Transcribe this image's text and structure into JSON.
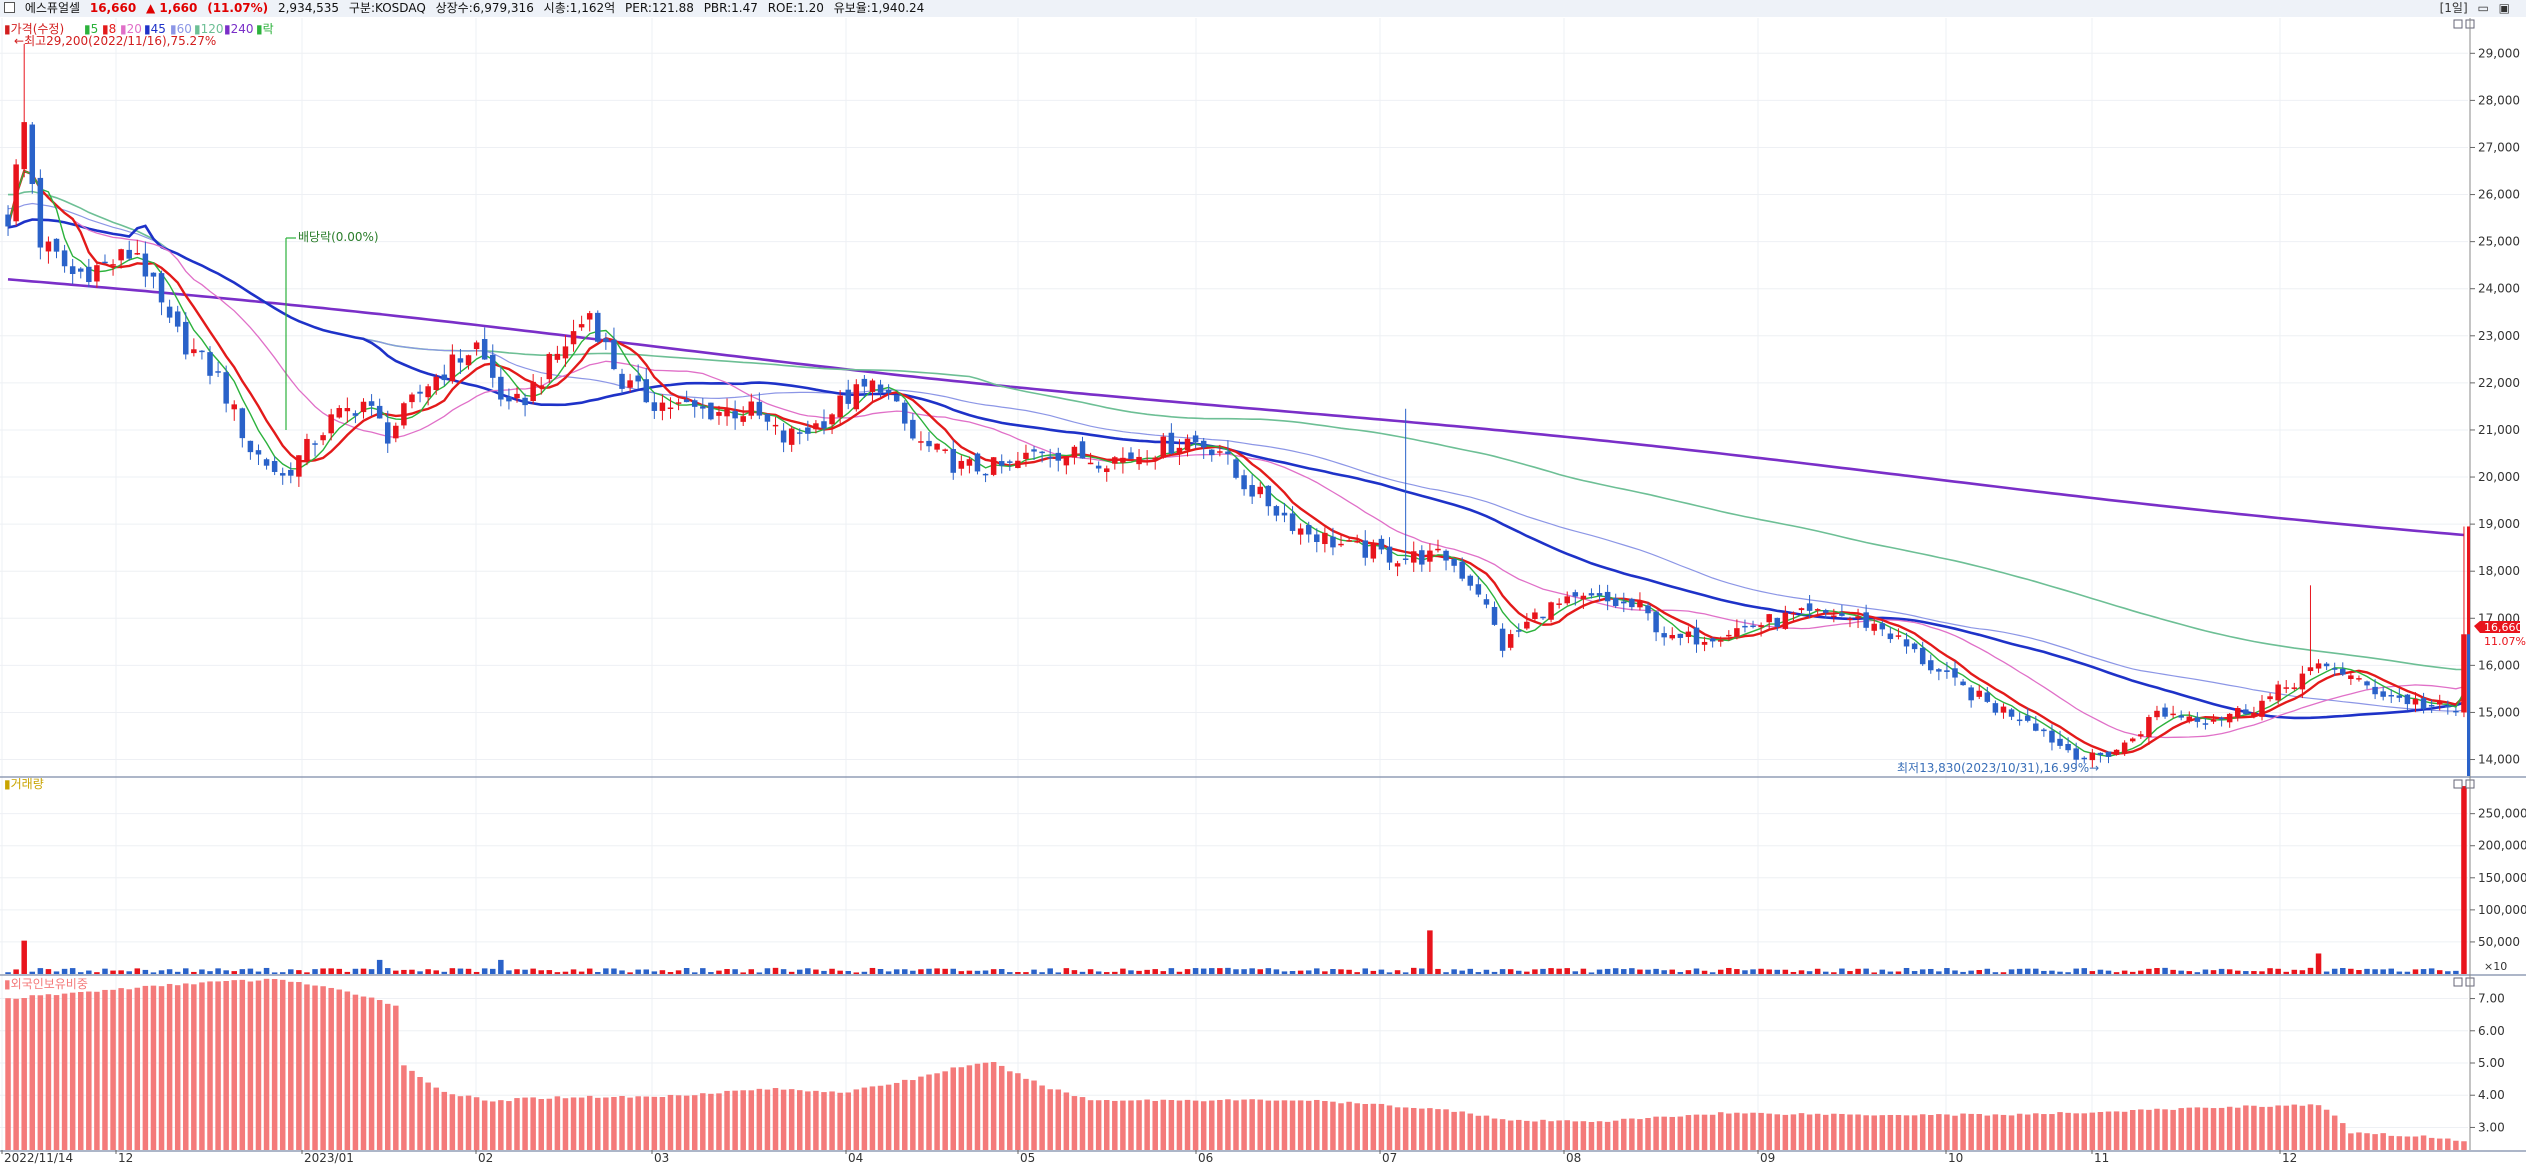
{
  "header": {
    "stock_name": "에스퓨얼셀",
    "price": "16,660",
    "change": "▲ 1,660",
    "change_pct": "(11.07%)",
    "volume": "2,934,535",
    "market": "구분:KOSDAQ",
    "listed": "상장수:6,979,316",
    "cap": "시총:1,162억",
    "per": "PER:121.88",
    "pbr": "PBR:1.47",
    "roe": "ROE:1.20",
    "reserve": "유보율:1,940.24",
    "period": "[1일]"
  },
  "price_legend": {
    "price": "가격(수정)",
    "ma": [
      "5",
      "8",
      "20",
      "45",
      "60",
      "120",
      "240"
    ],
    "tail": "락"
  },
  "annotations": {
    "high": "최고29,200(2022/11/16),75.27%",
    "low": "최저13,830(2023/10/31),16.99%",
    "dividend": "배당락(0.00%)"
  },
  "current_marker": {
    "value": "16,660",
    "pct": "11.07%"
  },
  "volume_panel": {
    "title": "거래량",
    "multiplier": "×10"
  },
  "foreign_panel": {
    "title": "외국인보유비중"
  },
  "colors": {
    "up": "#e8141c",
    "down": "#2a62c9",
    "ma5": "#2cb23c",
    "ma8": "#e31a1a",
    "ma20": "#e070c8",
    "ma45": "#1e32c8",
    "ma60": "#8c96e6",
    "ma120": "#6dbf95",
    "ma240": "#7a2fc8",
    "foreign": "#f47a7a"
  },
  "chart_data": [
    {
      "type": "candlestick",
      "title": "가격(수정)",
      "x_ticks": [
        "2022/11/14",
        "12",
        "2023/01",
        "02",
        "03",
        "04",
        "05",
        "06",
        "07",
        "08",
        "09",
        "10",
        "11",
        "12"
      ],
      "y_ticks": [
        "29,000",
        "28,000",
        "27,000",
        "26,000",
        "25,000",
        "24,000",
        "23,000",
        "22,000",
        "21,000",
        "20,000",
        "19,000",
        "18,000",
        "17,000",
        "16,000",
        "15,000",
        "14,000"
      ],
      "ylim": [
        13650,
        29750
      ],
      "close_anchors": [
        [
          0,
          25500
        ],
        [
          2,
          27500
        ],
        [
          4,
          25000
        ],
        [
          8,
          24300
        ],
        [
          12,
          24500
        ],
        [
          16,
          24800
        ],
        [
          20,
          23200
        ],
        [
          26,
          22100
        ],
        [
          30,
          20600
        ],
        [
          34,
          20000
        ],
        [
          36,
          20400
        ],
        [
          40,
          21200
        ],
        [
          44,
          21600
        ],
        [
          47,
          20900
        ],
        [
          52,
          22000
        ],
        [
          58,
          22800
        ],
        [
          62,
          21400
        ],
        [
          64,
          21700
        ],
        [
          68,
          22600
        ],
        [
          72,
          23500
        ],
        [
          76,
          22000
        ],
        [
          80,
          21600
        ],
        [
          86,
          21400
        ],
        [
          92,
          21400
        ],
        [
          96,
          20800
        ],
        [
          100,
          21100
        ],
        [
          104,
          21700
        ],
        [
          108,
          22000
        ],
        [
          112,
          20800
        ],
        [
          118,
          20200
        ],
        [
          124,
          20200
        ],
        [
          128,
          20600
        ],
        [
          134,
          20400
        ],
        [
          138,
          20400
        ],
        [
          142,
          20600
        ],
        [
          146,
          20800
        ],
        [
          150,
          20600
        ],
        [
          152,
          20000
        ],
        [
          160,
          18900
        ],
        [
          166,
          18500
        ],
        [
          172,
          18300
        ],
        [
          178,
          18300
        ],
        [
          182,
          17600
        ],
        [
          185,
          16400
        ],
        [
          190,
          17200
        ],
        [
          196,
          17400
        ],
        [
          202,
          17200
        ],
        [
          206,
          16500
        ],
        [
          212,
          16700
        ],
        [
          220,
          17000
        ],
        [
          226,
          17100
        ],
        [
          232,
          16800
        ],
        [
          240,
          15700
        ],
        [
          246,
          15100
        ],
        [
          250,
          14900
        ],
        [
          254,
          14300
        ],
        [
          258,
          14000
        ],
        [
          262,
          14300
        ],
        [
          266,
          15000
        ],
        [
          272,
          14900
        ],
        [
          276,
          15000
        ],
        [
          280,
          15300
        ],
        [
          284,
          15800
        ],
        [
          288,
          16000
        ],
        [
          291,
          15600
        ],
        [
          296,
          15300
        ],
        [
          303,
          15000
        ],
        [
          304,
          15000
        ]
      ],
      "last_bar": {
        "open": 15000,
        "high": 18950,
        "low": 14900,
        "close": 16660
      },
      "moving_averages": [
        "5",
        "8",
        "20",
        "45",
        "60",
        "120",
        "240"
      ]
    },
    {
      "type": "bar",
      "title": "거래량",
      "y_ticks": [
        "250,000",
        "200,000",
        "150,000",
        "100,000",
        "50,000"
      ],
      "unit": "×10",
      "ylim": [
        0,
        290000
      ],
      "typical": 6000,
      "spikes": [
        {
          "i": 2,
          "v": 52000
        },
        {
          "i": 46,
          "v": 22000
        },
        {
          "i": 61,
          "v": 22000
        },
        {
          "i": 176,
          "v": 68000
        },
        {
          "i": 286,
          "v": 32000
        },
        {
          "i": 304,
          "v": 293000
        }
      ]
    },
    {
      "type": "bar",
      "title": "외국인보유비중",
      "y_ticks": [
        "7.00",
        "6.00",
        "5.00",
        "4.00",
        "3.00"
      ],
      "ylim": [
        2.3,
        7.7
      ],
      "anchors": [
        [
          0,
          7.0
        ],
        [
          14,
          7.3
        ],
        [
          24,
          7.5
        ],
        [
          34,
          7.6
        ],
        [
          44,
          7.1
        ],
        [
          48,
          6.8
        ],
        [
          49,
          4.9
        ],
        [
          54,
          4.1
        ],
        [
          60,
          3.8
        ],
        [
          64,
          3.9
        ],
        [
          70,
          3.95
        ],
        [
          80,
          3.95
        ],
        [
          94,
          4.2
        ],
        [
          104,
          4.1
        ],
        [
          112,
          4.5
        ],
        [
          118,
          4.9
        ],
        [
          122,
          5.0
        ],
        [
          128,
          4.3
        ],
        [
          134,
          3.85
        ],
        [
          150,
          3.85
        ],
        [
          160,
          3.85
        ],
        [
          170,
          3.7
        ],
        [
          180,
          3.5
        ],
        [
          186,
          3.2
        ],
        [
          198,
          3.2
        ],
        [
          212,
          3.45
        ],
        [
          230,
          3.4
        ],
        [
          250,
          3.4
        ],
        [
          266,
          3.55
        ],
        [
          276,
          3.65
        ],
        [
          286,
          3.7
        ],
        [
          288,
          3.35
        ],
        [
          290,
          2.85
        ],
        [
          300,
          2.7
        ],
        [
          304,
          2.6
        ]
      ]
    }
  ]
}
